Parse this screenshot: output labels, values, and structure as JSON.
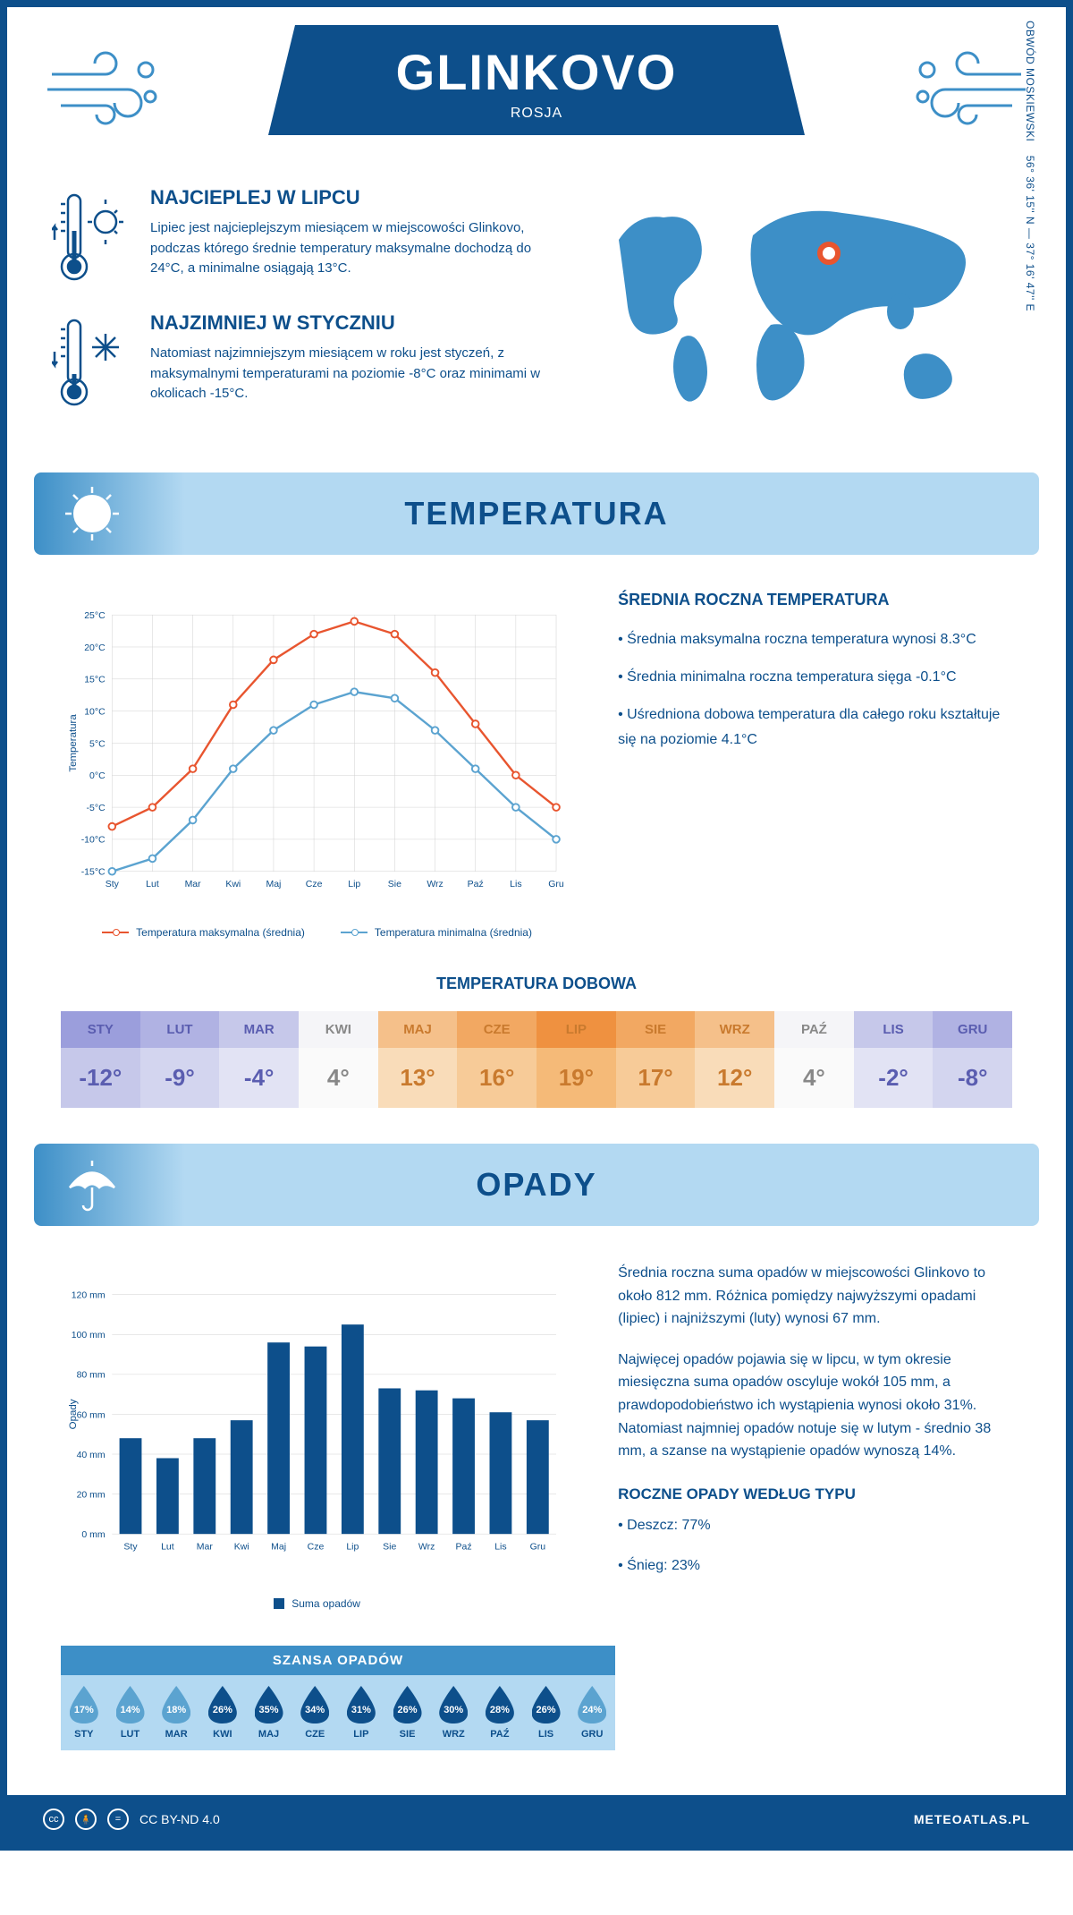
{
  "header": {
    "title": "GLINKOVO",
    "subtitle": "ROSJA"
  },
  "info": {
    "warmest": {
      "title": "NAJCIEPLEJ W LIPCU",
      "text": "Lipiec jest najcieplejszym miesiącem w miejscowości Glinkovo, podczas którego średnie temperatury maksymalne dochodzą do 24°C, a minimalne osiągają 13°C."
    },
    "coldest": {
      "title": "NAJZIMNIEJ W STYCZNIU",
      "text": "Natomiast najzimniejszym miesiącem w roku jest styczeń, z maksymalnymi temperaturami na poziomie -8°C oraz minimami w okolicach -15°C."
    },
    "coords": "56° 36' 15'' N — 37° 16' 47'' E",
    "region": "OBWÓD MOSKIEWSKI"
  },
  "temperature": {
    "section_title": "TEMPERATURA",
    "chart": {
      "type": "line",
      "months": [
        "Sty",
        "Lut",
        "Mar",
        "Kwi",
        "Maj",
        "Cze",
        "Lip",
        "Sie",
        "Wrz",
        "Paź",
        "Lis",
        "Gru"
      ],
      "max_series": [
        -8,
        -5,
        1,
        11,
        18,
        22,
        24,
        22,
        16,
        8,
        0,
        -5
      ],
      "min_series": [
        -15,
        -13,
        -7,
        1,
        7,
        11,
        13,
        12,
        7,
        1,
        -5,
        -10
      ],
      "ylim": [
        -15,
        25
      ],
      "ytick_step": 5,
      "max_color": "#e8552f",
      "min_color": "#5ba3d0",
      "grid_color": "#d0d0d0",
      "y_axis_label": "Temperatura",
      "legend_max": "Temperatura maksymalna (średnia)",
      "legend_min": "Temperatura minimalna (średnia)"
    },
    "summary": {
      "title": "ŚREDNIA ROCZNA TEMPERATURA",
      "p1": "• Średnia maksymalna roczna temperatura wynosi 8.3°C",
      "p2": "• Średnia minimalna roczna temperatura sięga -0.1°C",
      "p3": "• Uśredniona dobowa temperatura dla całego roku kształtuje się na poziomie 4.1°C"
    },
    "daily": {
      "title": "TEMPERATURA DOBOWA",
      "months": [
        "STY",
        "LUT",
        "MAR",
        "KWI",
        "MAJ",
        "CZE",
        "LIP",
        "SIE",
        "WRZ",
        "PAŹ",
        "LIS",
        "GRU"
      ],
      "values": [
        "-12°",
        "-9°",
        "-4°",
        "4°",
        "13°",
        "16°",
        "19°",
        "17°",
        "12°",
        "4°",
        "-2°",
        "-8°"
      ],
      "header_colors": [
        "#9b9edc",
        "#b0b2e3",
        "#c6c8ea",
        "#f5f5f8",
        "#f5c08a",
        "#f2a862",
        "#ef9140",
        "#f2a862",
        "#f5c08a",
        "#f5f5f8",
        "#c6c8ea",
        "#b0b2e3"
      ],
      "value_colors": [
        "#c6c8ea",
        "#d3d5ef",
        "#e2e3f4",
        "#fafafa",
        "#f9dcb9",
        "#f7cb98",
        "#f5ba78",
        "#f7cb98",
        "#f9dcb9",
        "#fafafa",
        "#e2e3f4",
        "#d3d5ef"
      ],
      "text_colors": [
        "#5a5db0",
        "#5a5db0",
        "#5a5db0",
        "#888",
        "#c97a2e",
        "#c97a2e",
        "#c97a2e",
        "#c97a2e",
        "#c97a2e",
        "#888",
        "#5a5db0",
        "#5a5db0"
      ]
    }
  },
  "precipitation": {
    "section_title": "OPADY",
    "chart": {
      "type": "bar",
      "months": [
        "Sty",
        "Lut",
        "Mar",
        "Kwi",
        "Maj",
        "Cze",
        "Lip",
        "Sie",
        "Wrz",
        "Paź",
        "Lis",
        "Gru"
      ],
      "values": [
        48,
        38,
        48,
        57,
        96,
        94,
        105,
        73,
        72,
        68,
        61,
        57
      ],
      "ylim": [
        0,
        120
      ],
      "ytick_step": 20,
      "bar_color": "#0d4f8b",
      "grid_color": "#d0d0d0",
      "y_axis_label": "Opady",
      "legend": "Suma opadów"
    },
    "text": {
      "p1": "Średnia roczna suma opadów w miejscowości Glinkovo to około 812 mm. Różnica pomiędzy najwyższymi opadami (lipiec) i najniższymi (luty) wynosi 67 mm.",
      "p2": "Najwięcej opadów pojawia się w lipcu, w tym okresie miesięczna suma opadów oscyluje wokół 105 mm, a prawdopodobieństwo ich wystąpienia wynosi około 31%. Natomiast najmniej opadów notuje się w lutym - średnio 38 mm, a szanse na wystąpienie opadów wynoszą 14%."
    },
    "chance": {
      "title": "SZANSA OPADÓW",
      "months": [
        "STY",
        "LUT",
        "MAR",
        "KWI",
        "MAJ",
        "CZE",
        "LIP",
        "SIE",
        "WRZ",
        "PAŹ",
        "LIS",
        "GRU"
      ],
      "values": [
        "17%",
        "14%",
        "18%",
        "26%",
        "35%",
        "34%",
        "31%",
        "26%",
        "30%",
        "28%",
        "26%",
        "24%"
      ],
      "light": [
        true,
        true,
        true,
        false,
        false,
        false,
        false,
        false,
        false,
        false,
        false,
        true
      ]
    },
    "by_type": {
      "title": "ROCZNE OPADY WEDŁUG TYPU",
      "rain": "• Deszcz: 77%",
      "snow": "• Śnieg: 23%"
    }
  },
  "footer": {
    "license": "CC BY-ND 4.0",
    "site": "METEOATLAS.PL"
  }
}
